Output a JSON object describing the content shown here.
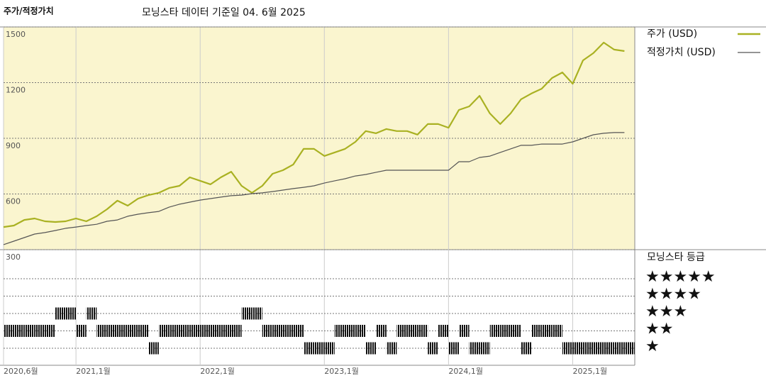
{
  "chart_data": {
    "type": "line",
    "title": "주가/적정가치",
    "subtitle": "모닝스타 데이터 기준일 04. 6월 2025",
    "x": [
      "2020-06",
      "2020-07",
      "2020-08",
      "2020-09",
      "2020-10",
      "2020-11",
      "2020-12",
      "2021-01",
      "2021-02",
      "2021-03",
      "2021-04",
      "2021-05",
      "2021-06",
      "2021-07",
      "2021-08",
      "2021-09",
      "2021-10",
      "2021-11",
      "2021-12",
      "2022-01",
      "2022-02",
      "2022-03",
      "2022-04",
      "2022-05",
      "2022-06",
      "2022-07",
      "2022-08",
      "2022-09",
      "2022-10",
      "2022-11",
      "2022-12",
      "2023-01",
      "2023-02",
      "2023-03",
      "2023-04",
      "2023-05",
      "2023-06",
      "2023-07",
      "2023-08",
      "2023-09",
      "2023-10",
      "2023-11",
      "2023-12",
      "2024-01",
      "2024-02",
      "2024-03",
      "2024-04",
      "2024-05",
      "2024-06",
      "2024-07",
      "2024-08",
      "2024-09",
      "2024-10",
      "2024-11",
      "2024-12",
      "2025-01",
      "2025-02",
      "2025-03",
      "2025-04",
      "2025-05",
      "2025-06"
    ],
    "series": [
      {
        "name": "주가 (USD)",
        "color": "#a9b122",
        "values": [
          422,
          430,
          460,
          468,
          453,
          449,
          453,
          468,
          453,
          480,
          518,
          564,
          537,
          575,
          594,
          606,
          632,
          644,
          690,
          671,
          652,
          690,
          720,
          644,
          606,
          644,
          709,
          728,
          759,
          843,
          843,
          805,
          824,
          843,
          881,
          939,
          927,
          950,
          939,
          939,
          920,
          977,
          977,
          957,
          1053,
          1072,
          1129,
          1034,
          977,
          1034,
          1110,
          1141,
          1167,
          1225,
          1255,
          1194,
          1320,
          1359,
          1416,
          1378,
          1370
        ]
      },
      {
        "name": "적정가치 (USD)",
        "color": "#555555",
        "values": [
          327,
          346,
          365,
          384,
          392,
          403,
          415,
          422,
          430,
          437,
          453,
          460,
          480,
          491,
          499,
          506,
          529,
          545,
          556,
          567,
          575,
          583,
          591,
          594,
          602,
          606,
          613,
          621,
          629,
          636,
          644,
          659,
          671,
          682,
          697,
          705,
          717,
          728,
          728,
          728,
          728,
          728,
          728,
          728,
          774,
          774,
          797,
          804,
          824,
          843,
          862,
          862,
          869,
          869,
          869,
          881,
          900,
          919,
          927,
          931,
          931
        ]
      }
    ],
    "xlim": [
      "2020-06",
      "2025-07"
    ],
    "xticks": [
      {
        "value": "2020-06",
        "label": "2020,6월"
      },
      {
        "value": "2021-01",
        "label": "2021,1월"
      },
      {
        "value": "2022-01",
        "label": "2022,1월"
      },
      {
        "value": "2023-01",
        "label": "2023,1월"
      },
      {
        "value": "2024-01",
        "label": "2024,1월"
      },
      {
        "value": "2025-01",
        "label": "2025,1월"
      }
    ],
    "ylim": [
      300,
      1500
    ],
    "yticks": [
      300,
      600,
      900,
      1200,
      1500
    ],
    "grid": true,
    "rating": {
      "title": "모닝스타 등급",
      "levels": [
        {
          "value": 5,
          "label": "★★★★★"
        },
        {
          "value": 4,
          "label": "★★★★"
        },
        {
          "value": 3,
          "label": "★★★"
        },
        {
          "value": 2,
          "label": "★★"
        },
        {
          "value": 1,
          "label": "★"
        }
      ],
      "values": [
        2,
        2,
        2,
        2,
        2,
        3,
        3,
        2,
        3,
        2,
        2,
        2,
        2,
        2,
        1,
        2,
        2,
        2,
        2,
        2,
        2,
        2,
        2,
        3,
        3,
        2,
        2,
        2,
        2,
        1,
        1,
        1,
        2,
        2,
        2,
        1,
        2,
        1,
        2,
        2,
        2,
        1,
        2,
        1,
        2,
        1,
        1,
        2,
        2,
        2,
        1,
        2,
        2,
        2,
        1,
        1,
        1,
        1,
        1,
        1,
        1
      ]
    }
  }
}
